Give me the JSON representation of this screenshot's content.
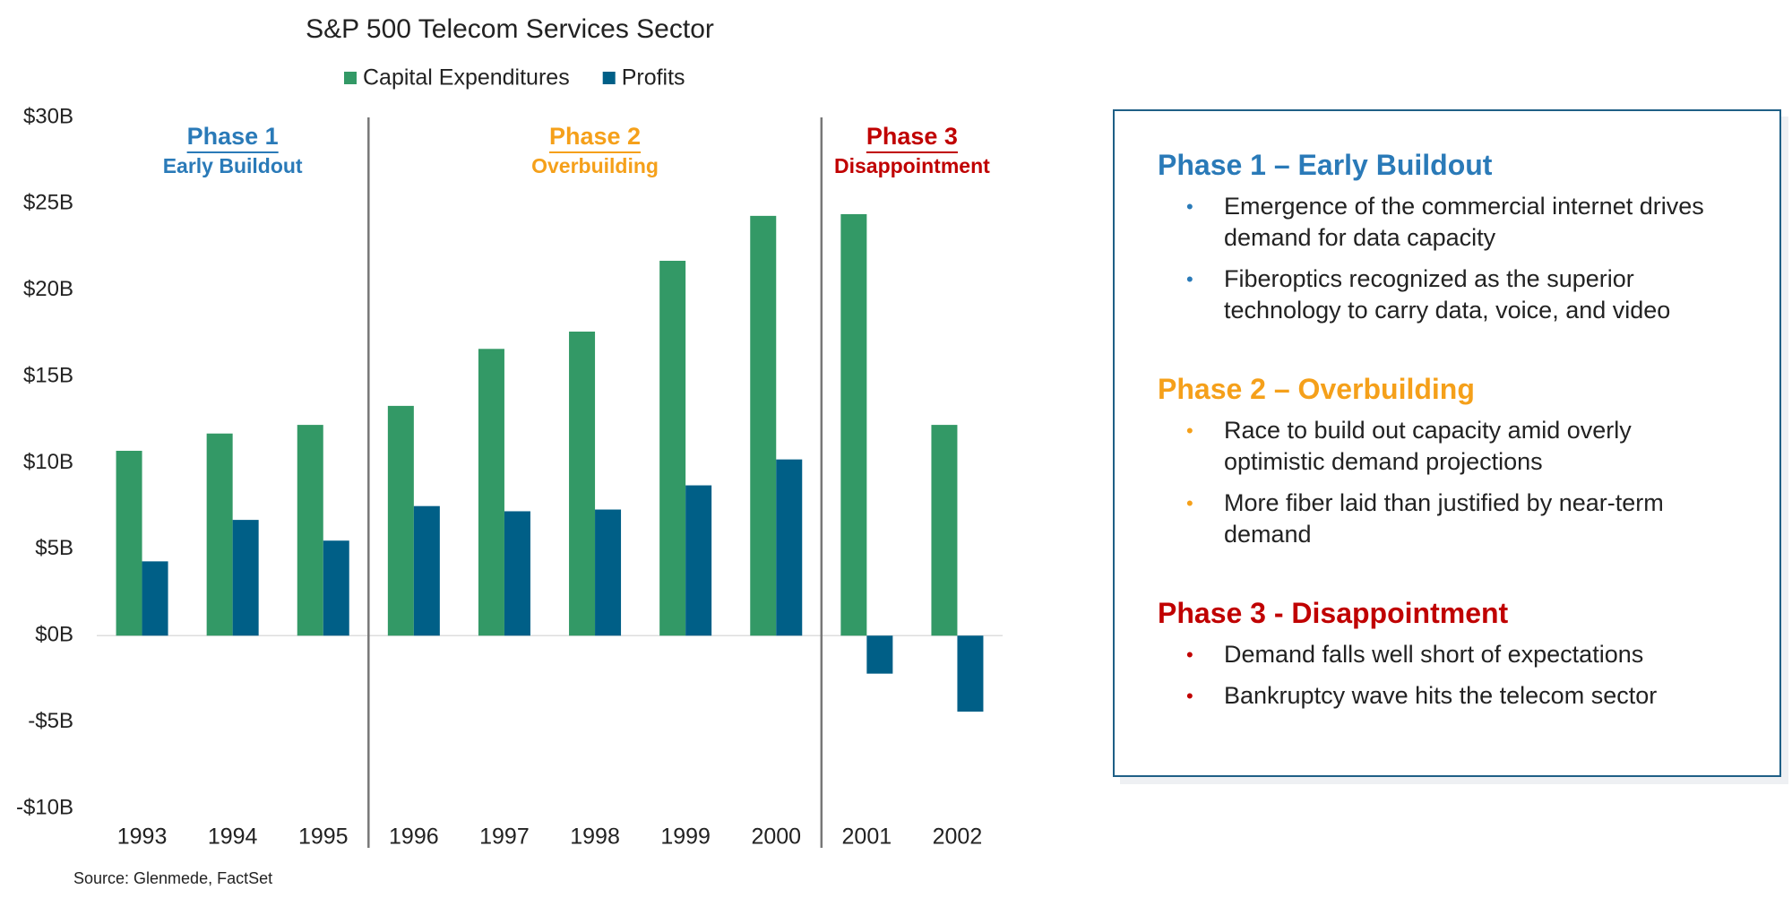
{
  "chart_data": {
    "type": "bar",
    "title": "S&P 500 Telecom Services Sector",
    "categories": [
      "1993",
      "1994",
      "1995",
      "1996",
      "1997",
      "1998",
      "1999",
      "2000",
      "2001",
      "2002"
    ],
    "series": [
      {
        "name": "Capital Expenditures",
        "color": "#339966",
        "values": [
          10.7,
          11.7,
          12.2,
          13.3,
          16.6,
          17.6,
          21.7,
          24.3,
          24.4,
          12.2
        ]
      },
      {
        "name": "Profits",
        "color": "#005f87",
        "values": [
          4.3,
          6.7,
          5.5,
          7.5,
          7.2,
          7.3,
          8.7,
          10.2,
          -2.2,
          -4.4
        ]
      }
    ],
    "ylim": [
      -10,
      30
    ],
    "yticks": [
      {
        "value": -10,
        "label": "-$10B"
      },
      {
        "value": -5,
        "label": "-$5B"
      },
      {
        "value": 0,
        "label": "$0B"
      },
      {
        "value": 5,
        "label": "$5B"
      },
      {
        "value": 10,
        "label": "$10B"
      },
      {
        "value": 15,
        "label": "$15B"
      },
      {
        "value": 20,
        "label": "$20B"
      },
      {
        "value": 25,
        "label": "$25B"
      },
      {
        "value": 30,
        "label": "$30B"
      }
    ],
    "grid": false,
    "legend": "top",
    "phases": [
      {
        "title": "Phase 1",
        "subtitle": "Early Buildout",
        "color": "#2a7ab8"
      },
      {
        "title": "Phase 2",
        "subtitle": "Overbuilding",
        "color": "#f5a01a"
      },
      {
        "title": "Phase 3",
        "subtitle": "Disappointment",
        "color": "#c00000"
      }
    ],
    "source": "Source: Glenmede, FactSet"
  },
  "panel": {
    "sections": [
      {
        "title": "Phase 1 – Early Buildout",
        "color": "#2a7ab8",
        "bullets": [
          "Emergence of the commercial internet drives demand for data capacity",
          "Fiberoptics recognized as the superior technology to carry data, voice, and video"
        ]
      },
      {
        "title": "Phase 2 – Overbuilding",
        "color": "#f5a01a",
        "bullets": [
          "Race to build out capacity amid overly optimistic demand projections",
          "More fiber laid than justified by near-term demand"
        ]
      },
      {
        "title": "Phase 3 - Disappointment",
        "color": "#c00000",
        "bullets": [
          "Demand falls well short of expectations",
          "Bankruptcy wave hits the telecom sector"
        ]
      }
    ]
  }
}
